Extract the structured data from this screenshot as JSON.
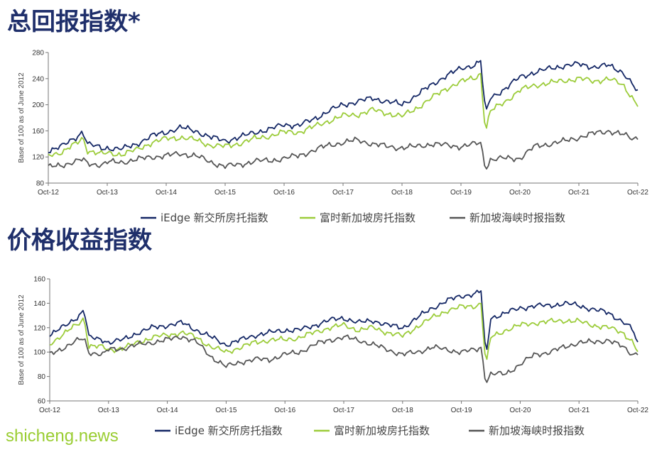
{
  "watermark": "shicheng.news",
  "colors": {
    "navy": "#142765",
    "lime": "#9ccc3a",
    "gray": "#555555",
    "axis": "#777777"
  },
  "chart_data": [
    {
      "type": "line",
      "title": "总回报指数*",
      "ylabel": "Base of 100 as of June 2012",
      "ylim": [
        80,
        280
      ],
      "yticks": [
        80,
        120,
        160,
        200,
        240,
        280
      ],
      "x_ticks": [
        "Oct-12",
        "Oct-13",
        "Oct-14",
        "Oct-15",
        "Oct-16",
        "Oct-17",
        "Oct-18",
        "Oct-19",
        "Oct-20",
        "Oct-21",
        "Oct-22"
      ],
      "x_range": [
        "Oct-12",
        "Oct-22"
      ],
      "x_dates": [
        "2012-10",
        "2013-01",
        "2013-04",
        "2013-05",
        "2013-06",
        "2013-09",
        "2013-10",
        "2014-01",
        "2014-04",
        "2014-07",
        "2014-10",
        "2015-01",
        "2015-04",
        "2015-07",
        "2015-10",
        "2016-01",
        "2016-04",
        "2016-07",
        "2016-10",
        "2017-01",
        "2017-04",
        "2017-07",
        "2017-10",
        "2018-01",
        "2018-04",
        "2018-07",
        "2018-10",
        "2019-01",
        "2019-04",
        "2019-07",
        "2019-10",
        "2020-01",
        "2020-02",
        "2020-03",
        "2020-04",
        "2020-07",
        "2020-10",
        "2021-01",
        "2021-04",
        "2021-07",
        "2021-10",
        "2022-01",
        "2022-04",
        "2022-07",
        "2022-09",
        "2022-10"
      ],
      "series": [
        {
          "name": "iEdge 新交所房托指数",
          "color": "#142765",
          "values": [
            130,
            137,
            152,
            160,
            140,
            133,
            134,
            132,
            140,
            152,
            158,
            165,
            160,
            150,
            145,
            150,
            158,
            162,
            170,
            168,
            178,
            190,
            200,
            205,
            210,
            205,
            200,
            215,
            230,
            245,
            255,
            262,
            268,
            185,
            210,
            225,
            242,
            250,
            255,
            260,
            262,
            258,
            260,
            250,
            230,
            218
          ]
        },
        {
          "name": "富时新加坡房托指数",
          "color": "#9ccc3a",
          "values": [
            123,
            128,
            142,
            150,
            130,
            124,
            126,
            124,
            131,
            142,
            148,
            150,
            146,
            138,
            136,
            141,
            148,
            152,
            158,
            158,
            166,
            175,
            183,
            185,
            192,
            187,
            182,
            195,
            210,
            225,
            235,
            242,
            248,
            158,
            190,
            205,
            222,
            230,
            233,
            237,
            240,
            236,
            240,
            230,
            210,
            200
          ]
        },
        {
          "name": "新加坡海峡时报指数",
          "color": "#555555",
          "values": [
            104,
            108,
            114,
            116,
            110,
            108,
            112,
            112,
            116,
            120,
            122,
            125,
            122,
            112,
            106,
            108,
            114,
            114,
            118,
            122,
            130,
            138,
            142,
            146,
            140,
            136,
            134,
            136,
            140,
            138,
            136,
            140,
            142,
            102,
            116,
            118,
            118,
            136,
            140,
            144,
            150,
            156,
            160,
            154,
            148,
            150
          ]
        }
      ],
      "legend": [
        "iEdge 新交所房托指数",
        "富时新加坡房托指数",
        "新加坡海峡时报指数"
      ]
    },
    {
      "type": "line",
      "title": "价格收益指数",
      "ylabel": "Base of 100 as of June 2012",
      "ylim": [
        60,
        160
      ],
      "yticks": [
        60,
        80,
        100,
        120,
        140,
        160
      ],
      "x_ticks": [
        "Oct-12",
        "Oct-13",
        "Oct-14",
        "Oct-15",
        "Oct-16",
        "Oct-17",
        "Oct-18",
        "Oct-19",
        "Oct-20",
        "Oct-21",
        "Oct-22"
      ],
      "x_range": [
        "Oct-12",
        "Oct-22"
      ],
      "x_dates": [
        "2012-10",
        "2013-01",
        "2013-04",
        "2013-05",
        "2013-06",
        "2013-09",
        "2013-10",
        "2014-01",
        "2014-04",
        "2014-07",
        "2014-10",
        "2015-01",
        "2015-04",
        "2015-07",
        "2015-10",
        "2016-01",
        "2016-04",
        "2016-07",
        "2016-10",
        "2017-01",
        "2017-04",
        "2017-07",
        "2017-10",
        "2018-01",
        "2018-04",
        "2018-07",
        "2018-10",
        "2019-01",
        "2019-04",
        "2019-07",
        "2019-10",
        "2020-01",
        "2020-02",
        "2020-03",
        "2020-04",
        "2020-07",
        "2020-10",
        "2021-01",
        "2021-04",
        "2021-07",
        "2021-10",
        "2022-01",
        "2022-04",
        "2022-07",
        "2022-09",
        "2022-10"
      ],
      "series": [
        {
          "name": "iEdge 新交所房托指数",
          "color": "#142765",
          "values": [
            114,
            121,
            130,
            135,
            112,
            110,
            108,
            110,
            116,
            120,
            122,
            124,
            118,
            112,
            106,
            110,
            114,
            116,
            118,
            118,
            122,
            126,
            128,
            124,
            126,
            122,
            120,
            128,
            136,
            142,
            146,
            148,
            150,
            95,
            128,
            132,
            136,
            138,
            138,
            140,
            138,
            135,
            132,
            125,
            118,
            106
          ]
        },
        {
          "name": "富时新加坡房托指数",
          "color": "#9ccc3a",
          "values": [
            107,
            115,
            124,
            128,
            105,
            104,
            102,
            103,
            108,
            112,
            114,
            116,
            112,
            104,
            100,
            104,
            108,
            110,
            110,
            112,
            116,
            120,
            122,
            118,
            120,
            116,
            113,
            121,
            128,
            134,
            137,
            138,
            140,
            88,
            112,
            118,
            122,
            124,
            125,
            126,
            125,
            122,
            120,
            116,
            108,
            100
          ]
        },
        {
          "name": "新加坡海峡时报指数",
          "color": "#555555",
          "values": [
            98,
            104,
            110,
            111,
            100,
            98,
            102,
            103,
            106,
            108,
            110,
            113,
            108,
            96,
            88,
            92,
            94,
            94,
            98,
            100,
            106,
            110,
            112,
            110,
            106,
            102,
            98,
            100,
            104,
            102,
            100,
            102,
            104,
            75,
            82,
            82,
            90,
            98,
            100,
            104,
            108,
            108,
            110,
            104,
            98,
            100
          ]
        }
      ],
      "legend": [
        "iEdge 新交所房托指数",
        "富时新加坡房托指数",
        "新加坡海峡时报指数"
      ]
    }
  ]
}
